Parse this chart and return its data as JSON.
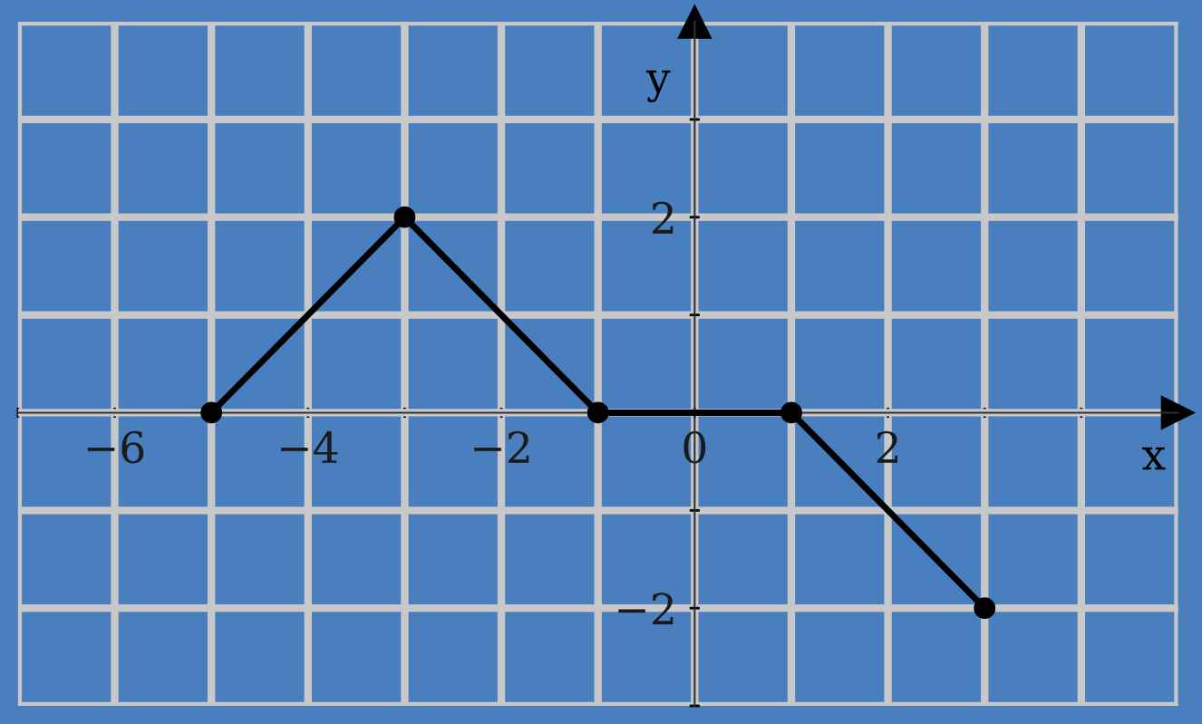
{
  "chart_data": {
    "type": "line",
    "xlabel": "x",
    "ylabel": "y",
    "x": [
      -5,
      -3,
      -1,
      1,
      3
    ],
    "series": [
      {
        "color": "#000000",
        "values": [
          0,
          2,
          0,
          0,
          -2
        ]
      }
    ],
    "xlim": [
      -7,
      5
    ],
    "ylim": [
      -3,
      4
    ],
    "xticks": [
      {
        "value": -7,
        "label": null
      },
      {
        "value": -6,
        "label": "−6"
      },
      {
        "value": -5,
        "label": null
      },
      {
        "value": -4,
        "label": "−4"
      },
      {
        "value": -3,
        "label": null
      },
      {
        "value": -2,
        "label": "−2"
      },
      {
        "value": -1,
        "label": null
      },
      {
        "value": 0,
        "label": "0"
      },
      {
        "value": 1,
        "label": null
      },
      {
        "value": 2,
        "label": "2"
      },
      {
        "value": 3,
        "label": null
      },
      {
        "value": 4,
        "label": null
      },
      {
        "value": 5,
        "label": null
      }
    ],
    "yticks": [
      {
        "value": -3,
        "label": null
      },
      {
        "value": -2,
        "label": "−2"
      },
      {
        "value": -1,
        "label": null
      },
      {
        "value": 0,
        "label": null
      },
      {
        "value": 1,
        "label": null
      },
      {
        "value": 2,
        "label": "2"
      },
      {
        "value": 3,
        "label": null
      },
      {
        "value": 4,
        "label": null
      }
    ],
    "grid": true,
    "marker": "circle",
    "line_style": "solid"
  }
}
